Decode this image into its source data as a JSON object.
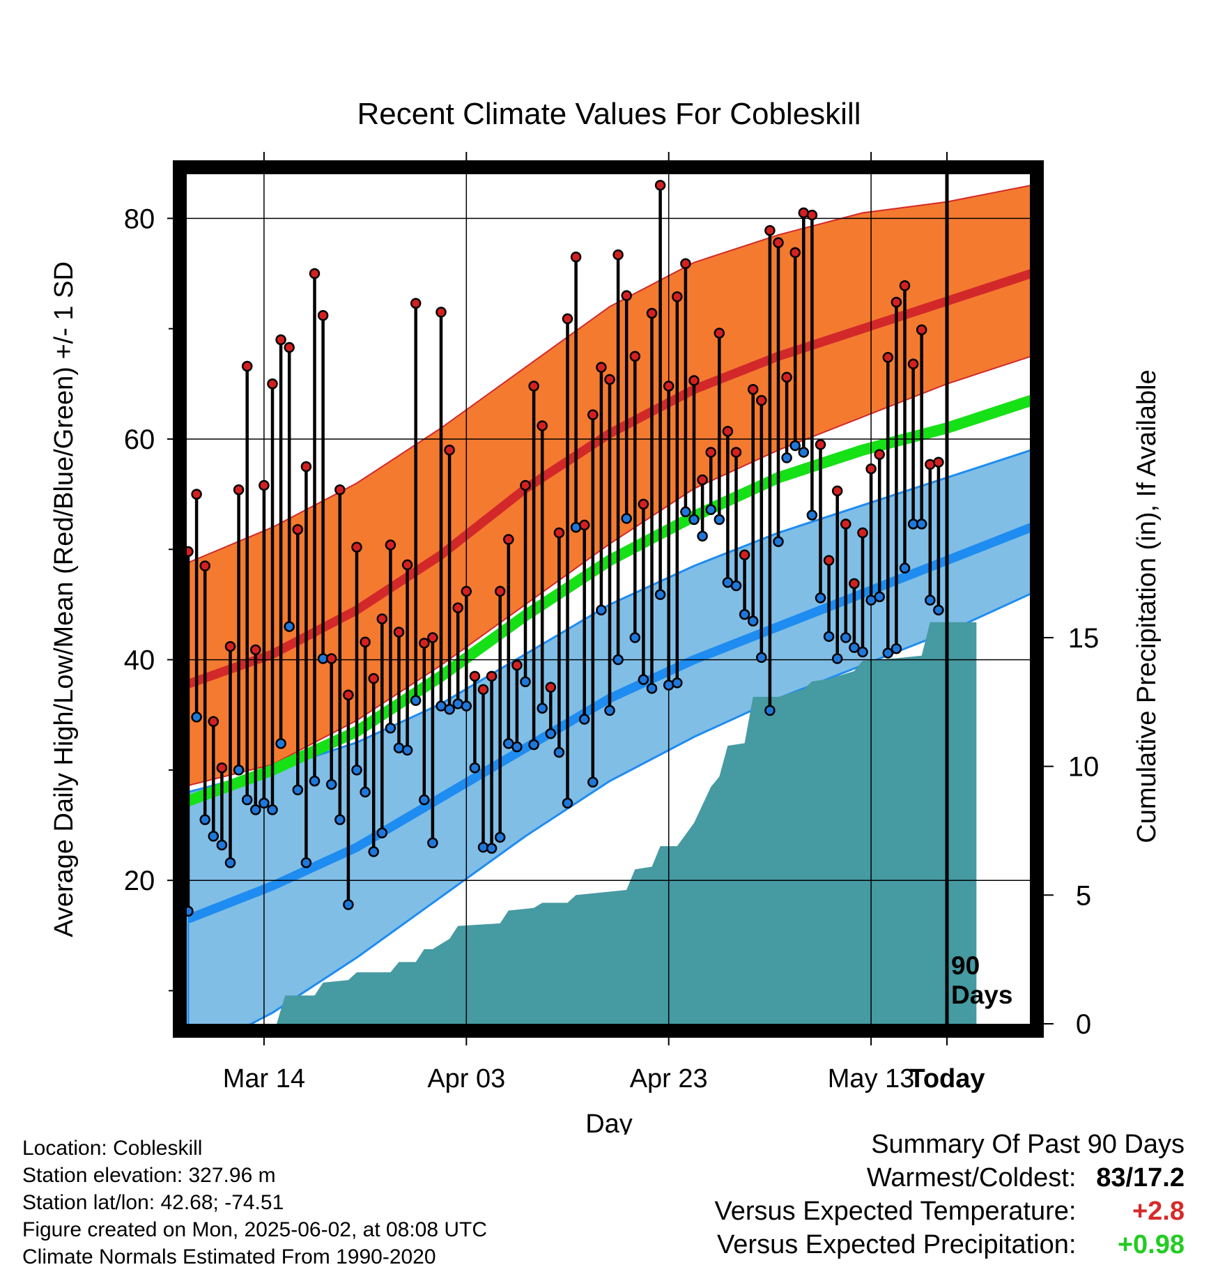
{
  "chart_data": {
    "type": "line",
    "title": "Recent Climate Values For Cobleskill",
    "xlabel": "Day",
    "ylabel": "Average Daily High/Low/Mean (Red/Blue/Green) +/- 1 SD",
    "y2label": "Cumulative Precipitation (in), If Available",
    "xticks": [
      "Mar 14",
      "Apr 03",
      "Apr 23",
      "May 13",
      "Today"
    ],
    "yticks": [
      "20",
      "40",
      "60",
      "80"
    ],
    "y2ticks": [
      "0",
      "5",
      "10",
      "15"
    ],
    "ylim": [
      7,
      84
    ],
    "y2lim": [
      0,
      33
    ],
    "today_marker": "90\nDays",
    "colors": {
      "high_band": "#f47a30",
      "high_mean": "#d2282a",
      "low_band": "#80bee6",
      "low_mean": "#1e8cf0",
      "mean": "#16e016",
      "precip": "#469aa2",
      "high_dot": "#d62020",
      "low_dot": "#1e78dc"
    },
    "normals": {
      "day": [
        0,
        10,
        20,
        30,
        40,
        50,
        60,
        70,
        80,
        90,
        100
      ],
      "high": [
        37.8,
        40.5,
        44.5,
        49.5,
        55.5,
        60.5,
        64.5,
        67.5,
        70.0,
        72.5,
        75.0
      ],
      "high_upper": [
        48.8,
        52.0,
        56.0,
        61.0,
        66.5,
        72.0,
        76.0,
        78.5,
        80.5,
        81.5,
        83.0
      ],
      "high_lower": [
        28.6,
        30.5,
        34.5,
        39.5,
        45.0,
        50.5,
        55.5,
        59.0,
        62.0,
        65.0,
        67.5
      ],
      "low": [
        16.5,
        19.5,
        23.0,
        27.5,
        32.0,
        36.5,
        40.0,
        43.0,
        46.0,
        49.0,
        52.0
      ],
      "low_upper": [
        28.0,
        30.0,
        32.5,
        36.0,
        40.5,
        45.0,
        48.5,
        51.5,
        54.0,
        56.5,
        59.0
      ],
      "low_lower": [
        4.0,
        8.0,
        13.0,
        18.5,
        24.0,
        29.0,
        33.0,
        36.5,
        39.5,
        42.5,
        46.0
      ],
      "mean": [
        27.2,
        30.0,
        33.5,
        38.5,
        44.0,
        49.0,
        53.0,
        56.5,
        59.0,
        61.0,
        63.5
      ]
    },
    "daily_high": [
      49.8,
      55.0,
      48.5,
      34.4,
      30.2,
      41.2,
      55.4,
      66.6,
      40.9,
      55.8,
      65.0,
      69.0,
      68.3,
      51.8,
      57.5,
      75.0,
      71.2,
      40.1,
      55.4,
      36.8,
      50.2,
      41.6,
      38.3,
      43.7,
      50.4,
      42.5,
      48.6,
      72.3,
      41.5,
      42.0,
      71.5,
      59.0,
      44.7,
      46.2,
      38.5,
      37.3,
      38.5,
      46.2,
      50.9,
      39.5,
      55.8,
      64.8,
      61.2,
      37.5,
      51.5,
      70.9,
      76.5,
      52.2,
      62.2,
      66.5,
      65.4,
      76.7,
      73.0,
      67.5,
      54.1,
      71.4,
      83.0,
      64.8,
      72.9,
      75.9,
      65.3,
      56.3,
      58.8,
      69.6,
      60.7,
      58.8,
      49.5,
      64.5,
      63.5,
      78.9,
      77.8,
      65.6,
      76.9,
      80.5,
      80.3,
      59.5,
      49.0,
      55.3,
      52.3,
      46.9,
      51.5,
      57.3,
      58.6,
      67.4,
      72.4,
      73.9,
      66.8,
      69.9,
      57.7,
      57.9
    ],
    "daily_low": [
      17.2,
      34.8,
      25.5,
      24.0,
      23.2,
      21.6,
      30.0,
      27.3,
      26.4,
      27.0,
      26.4,
      32.4,
      43.0,
      28.2,
      21.6,
      29.0,
      40.1,
      28.7,
      25.5,
      17.8,
      30.0,
      28.0,
      22.6,
      24.3,
      33.8,
      32.0,
      31.8,
      36.3,
      27.3,
      23.4,
      35.8,
      35.5,
      36.0,
      35.8,
      30.2,
      23.0,
      22.9,
      23.9,
      32.4,
      32.1,
      38.0,
      32.3,
      35.6,
      33.3,
      31.6,
      27.0,
      52.0,
      34.6,
      28.9,
      44.5,
      35.4,
      40.0,
      52.8,
      42.0,
      38.2,
      37.4,
      45.9,
      37.7,
      37.9,
      53.4,
      52.7,
      51.2,
      53.6,
      52.7,
      47.0,
      46.7,
      44.1,
      43.5,
      40.2,
      35.4,
      50.7,
      58.3,
      59.4,
      58.8,
      53.1,
      45.6,
      42.1,
      40.1,
      42.0,
      41.1,
      40.7,
      45.4,
      45.7,
      40.6,
      41.0,
      48.3,
      52.3,
      52.3,
      45.4,
      44.5
    ],
    "precip_cumulative": [
      [
        0,
        0
      ],
      [
        10.5,
        0
      ],
      [
        11.5,
        1.1
      ],
      [
        15,
        1.1
      ],
      [
        16,
        1.6
      ],
      [
        19,
        1.7
      ],
      [
        20,
        2.0
      ],
      [
        24,
        2.0
      ],
      [
        25,
        2.4
      ],
      [
        27,
        2.4
      ],
      [
        28,
        2.9
      ],
      [
        29,
        2.9
      ],
      [
        30,
        3.1
      ],
      [
        31,
        3.3
      ],
      [
        32,
        3.8
      ],
      [
        37,
        3.9
      ],
      [
        38,
        4.4
      ],
      [
        41,
        4.5
      ],
      [
        42,
        4.7
      ],
      [
        45,
        4.7
      ],
      [
        46,
        5.0
      ],
      [
        52,
        5.2
      ],
      [
        53,
        6.0
      ],
      [
        55,
        6.1
      ],
      [
        56,
        6.9
      ],
      [
        58,
        6.9
      ],
      [
        60,
        7.8
      ],
      [
        62,
        9.2
      ],
      [
        63,
        9.6
      ],
      [
        64,
        10.8
      ],
      [
        66,
        10.9
      ],
      [
        67,
        12.7
      ],
      [
        70,
        12.7
      ],
      [
        73,
        13.0
      ],
      [
        74,
        13.3
      ],
      [
        76,
        13.4
      ],
      [
        77,
        13.5
      ],
      [
        79,
        13.7
      ],
      [
        80,
        14.1
      ],
      [
        84,
        14.2
      ],
      [
        87,
        14.3
      ],
      [
        88,
        15.6
      ],
      [
        90,
        15.6
      ],
      [
        93.5,
        15.6
      ]
    ]
  },
  "footer": {
    "location": "Location: Cobleskill",
    "elevation": "Station elevation: 327.96 m",
    "latlon": "Station lat/lon: 42.68; -74.51",
    "created": "Figure created on Mon, 2025-06-02, at 08:08 UTC",
    "normals": "Climate Normals Estimated From 1990-2020"
  },
  "summary": {
    "heading": "Summary Of Past 90 Days",
    "warm_cold_label": "Warmest/Coldest:",
    "warm_cold_value": "83/17.2",
    "temp_label": "Versus Expected Temperature:",
    "temp_value": "+2.8",
    "temp_color": "#d62a2a",
    "precip_label": "Versus Expected Precipitation:",
    "precip_value": "+0.98",
    "precip_color": "#22cc22"
  }
}
